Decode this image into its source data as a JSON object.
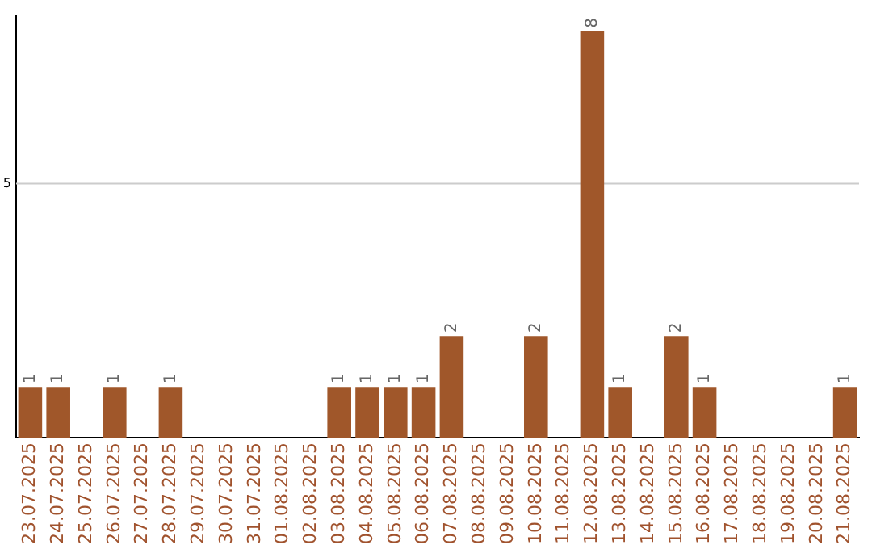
{
  "chart_data": {
    "type": "bar",
    "categories": [
      "23.07.2025",
      "24.07.2025",
      "25.07.2025",
      "26.07.2025",
      "27.07.2025",
      "28.07.2025",
      "29.07.2025",
      "30.07.2025",
      "31.07.2025",
      "01.08.2025",
      "02.08.2025",
      "03.08.2025",
      "04.08.2025",
      "05.08.2025",
      "06.08.2025",
      "07.08.2025",
      "08.08.2025",
      "09.08.2025",
      "10.08.2025",
      "11.08.2025",
      "12.08.2025",
      "13.08.2025",
      "14.08.2025",
      "15.08.2025",
      "16.08.2025",
      "17.08.2025",
      "18.08.2025",
      "19.08.2025",
      "20.08.2025",
      "21.08.2025"
    ],
    "values": [
      1,
      1,
      0,
      1,
      0,
      1,
      0,
      0,
      0,
      0,
      0,
      1,
      1,
      1,
      1,
      2,
      0,
      0,
      2,
      0,
      8,
      1,
      0,
      2,
      1,
      0,
      0,
      0,
      0,
      1
    ],
    "value_labels": [
      "1",
      "1",
      null,
      "1",
      null,
      "1",
      null,
      null,
      null,
      null,
      null,
      "1",
      "1",
      "1",
      "1",
      "2",
      null,
      null,
      "2",
      null,
      "8",
      "1",
      null,
      "2",
      "1",
      null,
      null,
      null,
      null,
      "1"
    ],
    "color": "#a0572a",
    "ylim": [
      0,
      8.3
    ],
    "ref_lines": [
      {
        "axis": "y",
        "value": 5,
        "label": "5",
        "color": "#cccccc"
      }
    ],
    "legend": false
  }
}
